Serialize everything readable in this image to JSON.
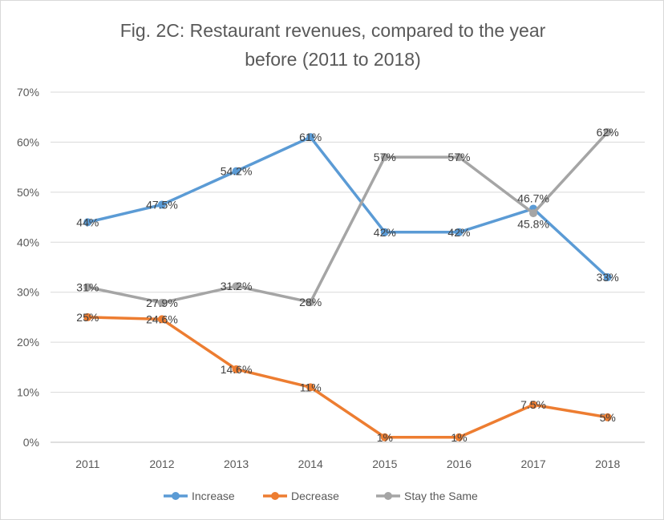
{
  "chart_data": {
    "type": "line",
    "title": [
      "Fig. 2C: Restaurant revenues, compared to the year",
      "before (2011 to 2018)"
    ],
    "categories": [
      "2011",
      "2012",
      "2013",
      "2014",
      "2015",
      "2016",
      "2017",
      "2018"
    ],
    "ylim": [
      0,
      70
    ],
    "yticks": [
      "0%",
      "10%",
      "20%",
      "30%",
      "40%",
      "50%",
      "60%",
      "70%"
    ],
    "grid": true,
    "legend_position": "bottom",
    "series": [
      {
        "name": "Increase",
        "color": "#5b9bd5",
        "values": [
          44,
          47.5,
          54.2,
          61,
          42,
          42,
          46.7,
          33
        ],
        "labels": [
          "44%",
          "47.5%",
          "54.2%",
          "61%",
          "42%",
          "42%",
          "46.7%",
          "33%"
        ]
      },
      {
        "name": "Decrease",
        "color": "#ed7d31",
        "values": [
          25,
          24.6,
          14.6,
          11,
          1,
          1,
          7.5,
          5
        ],
        "labels": [
          "25%",
          "24.6%",
          "14.6%",
          "11%",
          "1%",
          "1%",
          "7.5%",
          "5%"
        ]
      },
      {
        "name": "Stay the Same",
        "color": "#a5a5a5",
        "values": [
          31,
          27.9,
          31.2,
          28,
          57,
          57,
          45.8,
          62
        ],
        "labels": [
          "31%",
          "27.9%",
          "31.2%",
          "28%",
          "57%",
          "57%",
          "45.8%",
          "62%"
        ]
      }
    ]
  }
}
